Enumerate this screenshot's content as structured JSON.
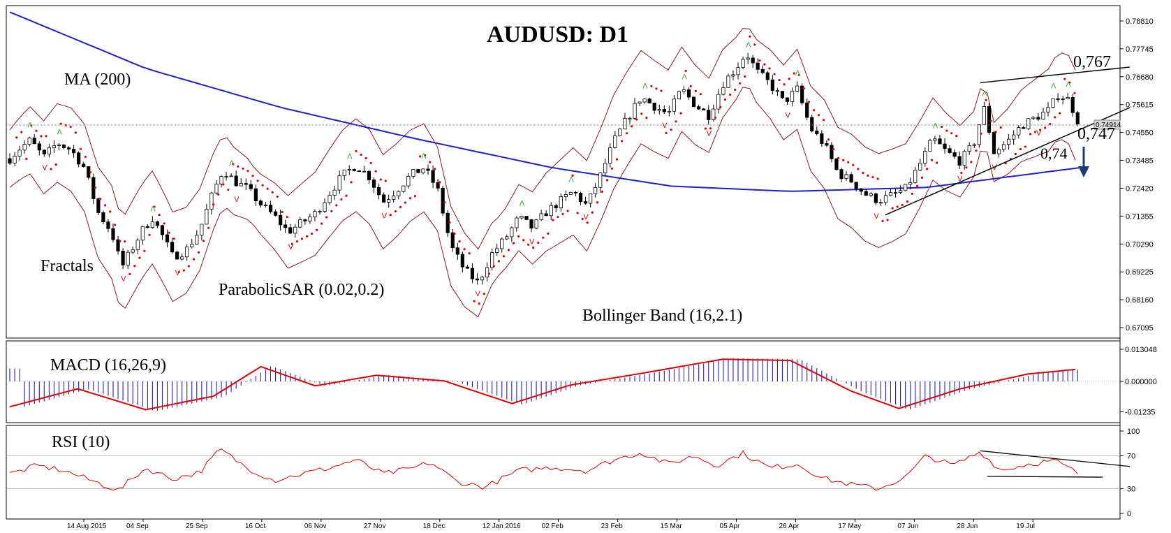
{
  "chart_data": {
    "type": "candlestick",
    "title": "AUDUSD: D1",
    "current_price": "0.74914",
    "x_tick_labels": [
      "14 Aug 2015",
      "04 Sep",
      "25 Sep",
      "16 Oct",
      "06 Nov",
      "27 Nov",
      "18 Dec",
      "12 Jan 2016",
      "02 Feb",
      "23 Feb",
      "15 Mar",
      "05 Apr",
      "26 Apr",
      "17 May",
      "07 Jun",
      "28 Jun",
      "19 Jul"
    ],
    "price_ticks": [
      "0.78810",
      "0.77745",
      "0.76680",
      "0.75615",
      "0.74550",
      "0.73485",
      "0.72420",
      "0.71355",
      "0.70290",
      "0.69225",
      "0.68160",
      "0.67095"
    ],
    "price_ylim": [
      0.6655,
      0.7917
    ],
    "macd_ticks": [
      "0.013048",
      "0.000000",
      "-0.01235"
    ],
    "macd_ylim": [
      -0.0145,
      0.0142
    ],
    "rsi_ticks": [
      "100",
      "70",
      "30",
      "0"
    ],
    "indicator_labels": {
      "ma": "MA (200)",
      "fractals": "Fractals",
      "sar": "ParabolicSAR (0.02,0.2)",
      "bollinger": "Bollinger Band (16,2.1)",
      "macd": "MACD (16,26,9)",
      "rsi": "RSI (10)"
    },
    "annotations": {
      "resistance": "0,767",
      "support": "0,747",
      "target": "0,74"
    },
    "price_path": [
      {
        "d": 0,
        "v": 0.7355
      },
      {
        "d": 3,
        "v": 0.7395
      },
      {
        "d": 6,
        "v": 0.7425
      },
      {
        "d": 10,
        "v": 0.736
      },
      {
        "d": 14,
        "v": 0.7415
      },
      {
        "d": 18,
        "v": 0.739
      },
      {
        "d": 22,
        "v": 0.732
      },
      {
        "d": 26,
        "v": 0.715
      },
      {
        "d": 30,
        "v": 0.7075
      },
      {
        "d": 33,
        "v": 0.694
      },
      {
        "d": 36,
        "v": 0.701
      },
      {
        "d": 39,
        "v": 0.708
      },
      {
        "d": 42,
        "v": 0.713
      },
      {
        "d": 45,
        "v": 0.706
      },
      {
        "d": 48,
        "v": 0.698
      },
      {
        "d": 52,
        "v": 0.7005
      },
      {
        "d": 56,
        "v": 0.7085
      },
      {
        "d": 60,
        "v": 0.723
      },
      {
        "d": 63,
        "v": 0.7315
      },
      {
        "d": 66,
        "v": 0.727
      },
      {
        "d": 70,
        "v": 0.724
      },
      {
        "d": 74,
        "v": 0.718
      },
      {
        "d": 78,
        "v": 0.7135
      },
      {
        "d": 82,
        "v": 0.7075
      },
      {
        "d": 86,
        "v": 0.711
      },
      {
        "d": 90,
        "v": 0.7145
      },
      {
        "d": 94,
        "v": 0.722
      },
      {
        "d": 98,
        "v": 0.729
      },
      {
        "d": 102,
        "v": 0.733
      },
      {
        "d": 106,
        "v": 0.7285
      },
      {
        "d": 110,
        "v": 0.719
      },
      {
        "d": 114,
        "v": 0.7235
      },
      {
        "d": 118,
        "v": 0.729
      },
      {
        "d": 122,
        "v": 0.732
      },
      {
        "d": 126,
        "v": 0.724
      },
      {
        "d": 130,
        "v": 0.702
      },
      {
        "d": 134,
        "v": 0.693
      },
      {
        "d": 138,
        "v": 0.688
      },
      {
        "d": 142,
        "v": 0.699
      },
      {
        "d": 146,
        "v": 0.705
      },
      {
        "d": 150,
        "v": 0.713
      },
      {
        "d": 154,
        "v": 0.709
      },
      {
        "d": 158,
        "v": 0.715
      },
      {
        "d": 162,
        "v": 0.719
      },
      {
        "d": 166,
        "v": 0.723
      },
      {
        "d": 170,
        "v": 0.7175
      },
      {
        "d": 174,
        "v": 0.729
      },
      {
        "d": 178,
        "v": 0.742
      },
      {
        "d": 182,
        "v": 0.751
      },
      {
        "d": 186,
        "v": 0.759
      },
      {
        "d": 190,
        "v": 0.7555
      },
      {
        "d": 194,
        "v": 0.7525
      },
      {
        "d": 198,
        "v": 0.762
      },
      {
        "d": 202,
        "v": 0.756
      },
      {
        "d": 206,
        "v": 0.752
      },
      {
        "d": 210,
        "v": 0.764
      },
      {
        "d": 214,
        "v": 0.77
      },
      {
        "d": 217,
        "v": 0.776
      },
      {
        "d": 220,
        "v": 0.769
      },
      {
        "d": 224,
        "v": 0.764
      },
      {
        "d": 228,
        "v": 0.757
      },
      {
        "d": 232,
        "v": 0.762
      },
      {
        "d": 236,
        "v": 0.747
      },
      {
        "d": 240,
        "v": 0.741
      },
      {
        "d": 244,
        "v": 0.73
      },
      {
        "d": 248,
        "v": 0.727
      },
      {
        "d": 252,
        "v": 0.722
      },
      {
        "d": 256,
        "v": 0.7195
      },
      {
        "d": 260,
        "v": 0.7215
      },
      {
        "d": 264,
        "v": 0.724
      },
      {
        "d": 268,
        "v": 0.733
      },
      {
        "d": 272,
        "v": 0.743
      },
      {
        "d": 276,
        "v": 0.738
      },
      {
        "d": 280,
        "v": 0.7345
      },
      {
        "d": 284,
        "v": 0.741
      },
      {
        "d": 287,
        "v": 0.755
      },
      {
        "d": 290,
        "v": 0.738
      },
      {
        "d": 294,
        "v": 0.742
      },
      {
        "d": 298,
        "v": 0.748
      },
      {
        "d": 302,
        "v": 0.751
      },
      {
        "d": 306,
        "v": 0.754
      },
      {
        "d": 309,
        "v": 0.76
      },
      {
        "d": 312,
        "v": 0.758
      },
      {
        "d": 315,
        "v": 0.7491
      }
    ],
    "ma200_path": [
      {
        "d": 0,
        "v": 0.7915
      },
      {
        "d": 40,
        "v": 0.77
      },
      {
        "d": 80,
        "v": 0.755
      },
      {
        "d": 120,
        "v": 0.743
      },
      {
        "d": 160,
        "v": 0.732
      },
      {
        "d": 195,
        "v": 0.725
      },
      {
        "d": 230,
        "v": 0.723
      },
      {
        "d": 270,
        "v": 0.7245
      },
      {
        "d": 315,
        "v": 0.732
      }
    ],
    "macd_path": [
      {
        "d": 0,
        "v": -0.0103
      },
      {
        "d": 20,
        "v": -0.003
      },
      {
        "d": 40,
        "v": -0.0115
      },
      {
        "d": 60,
        "v": -0.006
      },
      {
        "d": 74,
        "v": 0.006
      },
      {
        "d": 90,
        "v": -0.0018
      },
      {
        "d": 108,
        "v": 0.0025
      },
      {
        "d": 128,
        "v": 0.0002
      },
      {
        "d": 148,
        "v": -0.009
      },
      {
        "d": 165,
        "v": -0.0015
      },
      {
        "d": 185,
        "v": 0.003
      },
      {
        "d": 210,
        "v": 0.009
      },
      {
        "d": 230,
        "v": 0.0085
      },
      {
        "d": 248,
        "v": -0.004
      },
      {
        "d": 262,
        "v": -0.011
      },
      {
        "d": 280,
        "v": -0.003
      },
      {
        "d": 300,
        "v": 0.003
      },
      {
        "d": 315,
        "v": 0.005
      }
    ],
    "rsi_path": [
      {
        "d": 0,
        "v": 48
      },
      {
        "d": 8,
        "v": 58
      },
      {
        "d": 16,
        "v": 52
      },
      {
        "d": 24,
        "v": 40
      },
      {
        "d": 32,
        "v": 28
      },
      {
        "d": 40,
        "v": 55
      },
      {
        "d": 48,
        "v": 42
      },
      {
        "d": 56,
        "v": 50
      },
      {
        "d": 62,
        "v": 78
      },
      {
        "d": 70,
        "v": 55
      },
      {
        "d": 78,
        "v": 40
      },
      {
        "d": 86,
        "v": 48
      },
      {
        "d": 94,
        "v": 55
      },
      {
        "d": 102,
        "v": 65
      },
      {
        "d": 110,
        "v": 48
      },
      {
        "d": 118,
        "v": 54
      },
      {
        "d": 124,
        "v": 62
      },
      {
        "d": 132,
        "v": 38
      },
      {
        "d": 140,
        "v": 32
      },
      {
        "d": 150,
        "v": 52
      },
      {
        "d": 160,
        "v": 56
      },
      {
        "d": 170,
        "v": 52
      },
      {
        "d": 178,
        "v": 65
      },
      {
        "d": 186,
        "v": 74
      },
      {
        "d": 194,
        "v": 60
      },
      {
        "d": 202,
        "v": 70
      },
      {
        "d": 208,
        "v": 58
      },
      {
        "d": 216,
        "v": 73
      },
      {
        "d": 224,
        "v": 55
      },
      {
        "d": 232,
        "v": 60
      },
      {
        "d": 240,
        "v": 42
      },
      {
        "d": 248,
        "v": 35
      },
      {
        "d": 256,
        "v": 30
      },
      {
        "d": 264,
        "v": 44
      },
      {
        "d": 270,
        "v": 70
      },
      {
        "d": 278,
        "v": 58
      },
      {
        "d": 286,
        "v": 75
      },
      {
        "d": 292,
        "v": 52
      },
      {
        "d": 300,
        "v": 60
      },
      {
        "d": 308,
        "v": 64
      },
      {
        "d": 315,
        "v": 48
      }
    ],
    "trendlines_price": [
      {
        "d1": 258,
        "v1": 0.714,
        "d2": 330,
        "v2": 0.755,
        "color": "#000000"
      },
      {
        "d1": 286,
        "v1": 0.7645,
        "d2": 330,
        "v2": 0.7705,
        "color": "#000000"
      }
    ],
    "trendlines_rsi": [
      {
        "d1": 286,
        "v1": 76,
        "d2": 330,
        "v2": 57,
        "color": "#000000"
      },
      {
        "d1": 288,
        "v1": 45,
        "d2": 322,
        "v2": 44,
        "color": "#000000"
      }
    ],
    "colors": {
      "up_candle": "#ffffff",
      "down_candle": "#000000",
      "ma": "#1f1fcc",
      "macd_hist": "#2020cc",
      "macd_signal": "#e00000",
      "rsi": "#e00000",
      "bollinger": "#8b1a1a",
      "sar": "#e00000",
      "fractal": "#2fa82f",
      "fractal_down": "#e00000",
      "arrow": "#1a3a7a"
    }
  }
}
